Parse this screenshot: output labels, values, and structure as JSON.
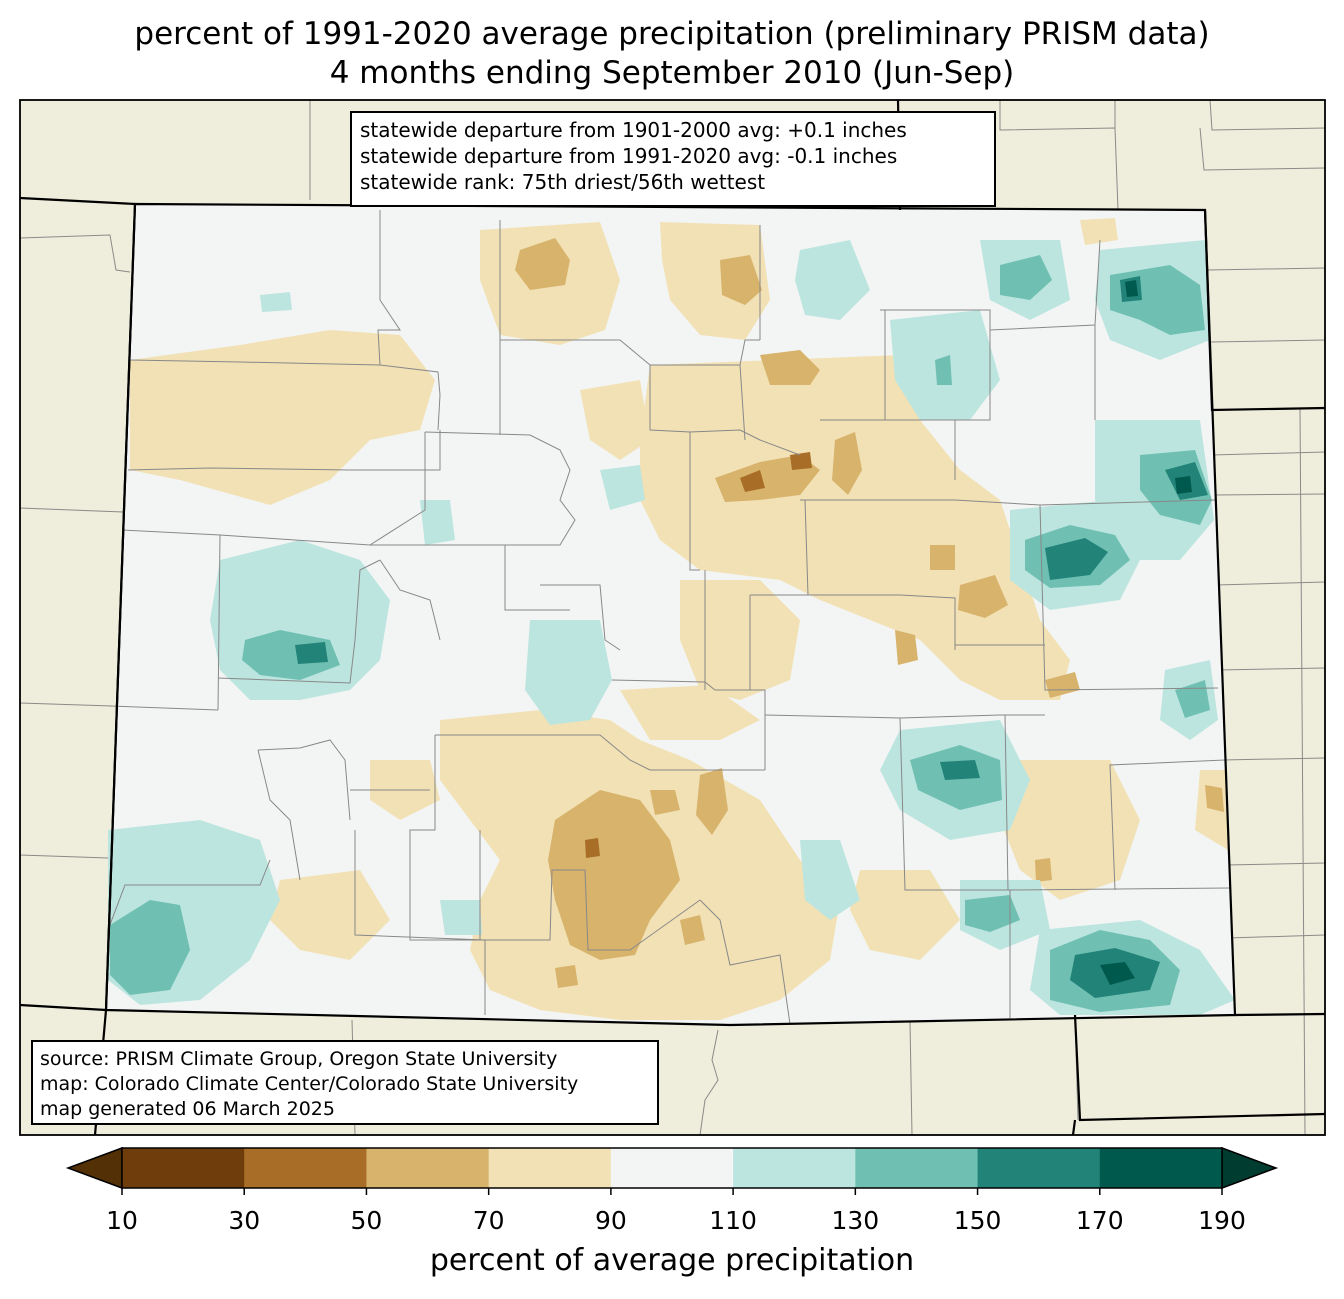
{
  "title": {
    "line1": "percent of 1991-2020 average precipitation (preliminary PRISM data)",
    "line2": "4 months ending September 2010 (Jun-Sep)"
  },
  "stats_box": {
    "line1": "statewide departure from 1901-2000 avg: +0.1 inches",
    "line2": "statewide departure from 1991-2020 avg: -0.1 inches",
    "line3": "statewide rank: 75th driest/56th wettest"
  },
  "credits_box": {
    "line1": "source: PRISM Climate Group, Oregon State University",
    "line2": "map: Colorado Climate Center/Colorado State University",
    "line3": "map generated 06 March 2025"
  },
  "colorbar": {
    "label": "percent of average precipitation",
    "ticks": [
      "10",
      "30",
      "50",
      "70",
      "90",
      "110",
      "130",
      "150",
      "170",
      "190"
    ],
    "bins": [
      {
        "range": "10-30",
        "color": "#6f3d0c"
      },
      {
        "range": "30-50",
        "color": "#a86d26"
      },
      {
        "range": "50-70",
        "color": "#d7b36c"
      },
      {
        "range": "70-90",
        "color": "#f2e1b5"
      },
      {
        "range": "90-110",
        "color": "#f3f5f4"
      },
      {
        "range": "110-130",
        "color": "#bde5df"
      },
      {
        "range": "130-150",
        "color": "#6fc0b2"
      },
      {
        "range": "150-170",
        "color": "#228379"
      },
      {
        "range": "170-190",
        "color": "#00594d"
      }
    ],
    "under_color": "#543006",
    "over_color": "#003c30"
  },
  "colors": {
    "outside_land": "#efeddb",
    "state_border": "#000000",
    "county_border": "#888888"
  }
}
